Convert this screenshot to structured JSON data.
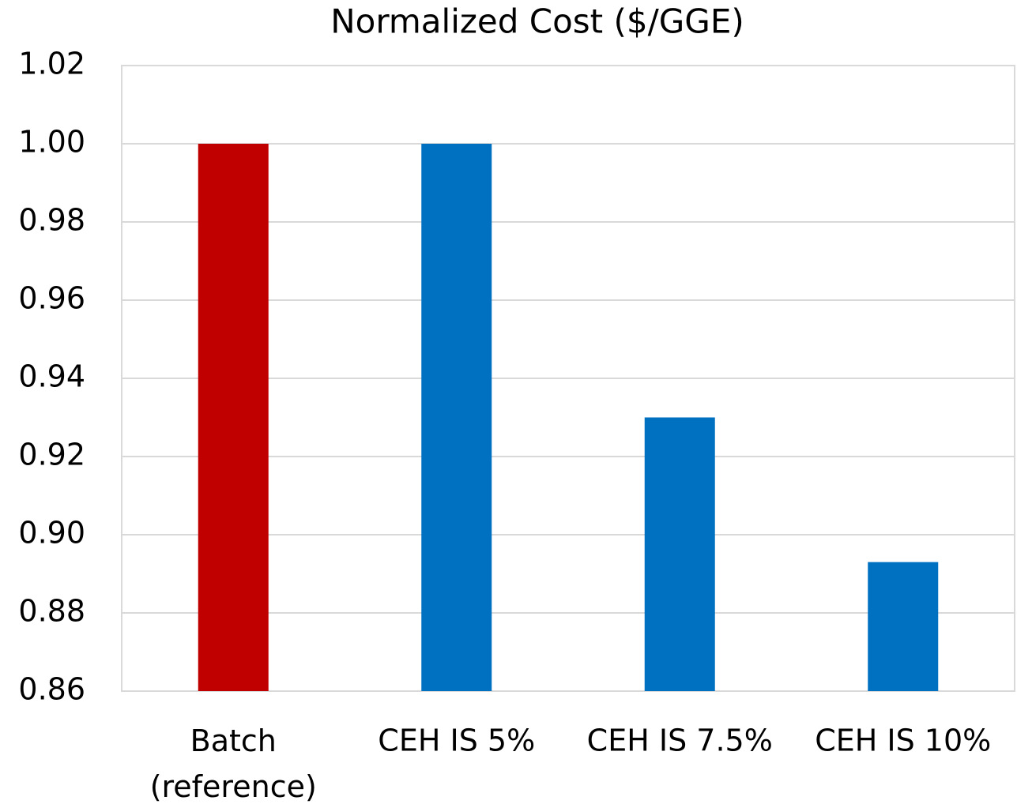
{
  "chart_data": {
    "type": "bar",
    "title": "Normalized Cost ($/GGE)",
    "categories": [
      "Batch (reference)",
      "CEH IS 5%",
      "CEH IS 7.5%",
      "CEH IS 10%"
    ],
    "values": [
      1.0,
      1.0,
      0.93,
      0.893
    ],
    "colors": [
      "#c00000",
      "#0070c0",
      "#0070c0",
      "#0070c0"
    ],
    "ylim": [
      0.86,
      1.02
    ],
    "yticks": [
      {
        "value": 0.86,
        "label": "0.86"
      },
      {
        "value": 0.88,
        "label": "0.88"
      },
      {
        "value": 0.9,
        "label": "0.90"
      },
      {
        "value": 0.92,
        "label": "0.92"
      },
      {
        "value": 0.94,
        "label": "0.94"
      },
      {
        "value": 0.96,
        "label": "0.96"
      },
      {
        "value": 0.98,
        "label": "0.98"
      },
      {
        "value": 1.0,
        "label": "1.00"
      },
      {
        "value": 1.02,
        "label": "1.02"
      }
    ],
    "grid": true
  }
}
